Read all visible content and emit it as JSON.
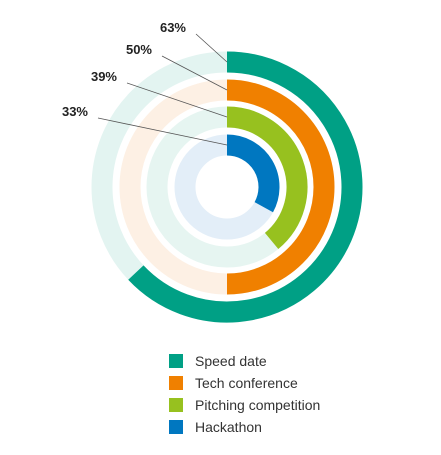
{
  "chart_data": {
    "type": "radial_bar",
    "max": 100,
    "series": [
      {
        "name": "Speed date",
        "value": 63,
        "label": "63%",
        "color": "#00a085",
        "track_color": "#e3f4f1"
      },
      {
        "name": "Tech conference",
        "value": 50,
        "label": "50%",
        "color": "#f08000",
        "track_color": "#fdf0e4"
      },
      {
        "name": "Pitching competition",
        "value": 39,
        "label": "39%",
        "color": "#97c11f",
        "track_color": "#e6f5f1"
      },
      {
        "name": "Hackathon",
        "value": 33,
        "label": "33%",
        "color": "#0077c0",
        "track_color": "#e3eef8"
      }
    ],
    "legend_position": "bottom"
  }
}
